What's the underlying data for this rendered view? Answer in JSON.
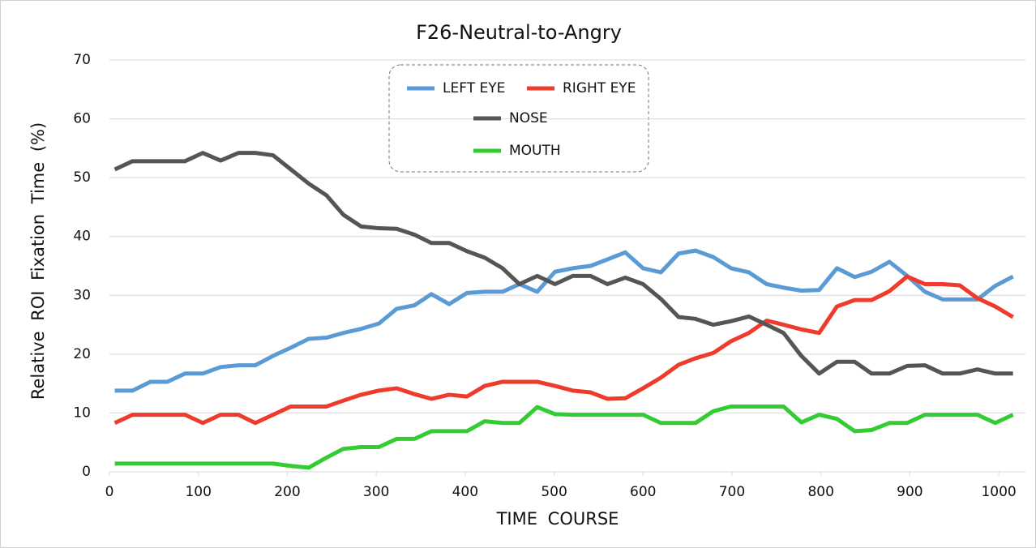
{
  "chart_data": {
    "type": "line",
    "title": "F26-Neutral-to-Angry",
    "x_label": "TIME COURSE",
    "y_label": "Relative ROI Fixation Time (%)",
    "x": [
      6,
      26,
      46,
      65,
      85,
      105,
      125,
      145,
      164,
      184,
      204,
      224,
      244,
      263,
      283,
      303,
      323,
      343,
      362,
      382,
      402,
      422,
      442,
      461,
      481,
      501,
      521,
      541,
      560,
      580,
      600,
      620,
      640,
      659,
      679,
      699,
      719,
      739,
      758,
      778,
      798,
      818,
      838,
      857,
      877,
      897,
      917,
      937,
      956,
      976,
      996,
      1016
    ],
    "series": [
      {
        "name": "LEFT EYE",
        "color": "#5b9bd5",
        "values": [
          13.8,
          13.8,
          15.3,
          15.3,
          16.7,
          16.7,
          17.8,
          18.1,
          18.1,
          19.7,
          21.1,
          22.6,
          22.8,
          23.6,
          24.3,
          25.2,
          27.7,
          28.3,
          30.2,
          28.5,
          30.4,
          30.6,
          30.6,
          31.9,
          30.6,
          34.0,
          34.6,
          35.0,
          36.1,
          37.3,
          34.6,
          33.9,
          37.1,
          37.6,
          36.5,
          34.6,
          33.9,
          31.9,
          31.3,
          30.8,
          30.9,
          34.6,
          33.1,
          34.0,
          35.7,
          33.3,
          30.6,
          29.3,
          29.3,
          29.3,
          31.6,
          33.2
        ]
      },
      {
        "name": "RIGHT EYE",
        "color": "#ef3b2c",
        "values": [
          8.3,
          9.7,
          9.7,
          9.7,
          9.7,
          8.3,
          9.7,
          9.7,
          8.3,
          9.7,
          11.1,
          11.1,
          11.1,
          12.1,
          13.1,
          13.8,
          14.2,
          13.2,
          12.4,
          13.1,
          12.8,
          14.6,
          15.3,
          15.3,
          15.3,
          14.6,
          13.8,
          13.5,
          12.4,
          12.5,
          14.2,
          16.0,
          18.2,
          19.3,
          20.2,
          22.2,
          23.6,
          25.7,
          25.0,
          24.2,
          23.6,
          28.1,
          29.2,
          29.2,
          30.7,
          33.2,
          31.9,
          31.9,
          31.7,
          29.5,
          28.1,
          26.3
        ]
      },
      {
        "name": "NOSE",
        "color": "#555555",
        "values": [
          51.4,
          52.8,
          52.8,
          52.8,
          52.8,
          54.2,
          52.9,
          54.2,
          54.2,
          53.8,
          51.4,
          49.0,
          47.0,
          43.7,
          41.7,
          41.4,
          41.3,
          40.3,
          38.9,
          38.9,
          37.5,
          36.4,
          34.6,
          31.9,
          33.3,
          31.9,
          33.3,
          33.3,
          31.9,
          33.0,
          31.9,
          29.4,
          26.3,
          26.0,
          25.0,
          25.6,
          26.4,
          25.0,
          23.6,
          19.7,
          16.7,
          18.7,
          18.7,
          16.7,
          16.7,
          18.0,
          18.1,
          16.7,
          16.7,
          17.4,
          16.7,
          16.7
        ]
      },
      {
        "name": "MOUTH",
        "color": "#33cc33",
        "values": [
          1.4,
          1.4,
          1.4,
          1.4,
          1.4,
          1.4,
          1.4,
          1.4,
          1.4,
          1.4,
          1.0,
          0.7,
          2.4,
          3.9,
          4.2,
          4.2,
          5.6,
          5.6,
          6.9,
          6.9,
          6.9,
          8.6,
          8.3,
          8.3,
          11.0,
          9.8,
          9.7,
          9.7,
          9.7,
          9.7,
          9.7,
          8.3,
          8.3,
          8.3,
          10.3,
          11.1,
          11.1,
          11.1,
          11.1,
          8.4,
          9.7,
          9.0,
          6.9,
          7.1,
          8.3,
          8.3,
          9.7,
          9.7,
          9.7,
          9.7,
          8.3,
          9.7
        ]
      }
    ],
    "xlim": [
      0,
      1030
    ],
    "xticks": [
      0,
      100,
      200,
      300,
      400,
      500,
      600,
      700,
      800,
      900,
      1000
    ],
    "ylim": [
      0,
      70
    ],
    "yticks": [
      0,
      10,
      20,
      30,
      40,
      50,
      60,
      70
    ],
    "grid": true
  }
}
